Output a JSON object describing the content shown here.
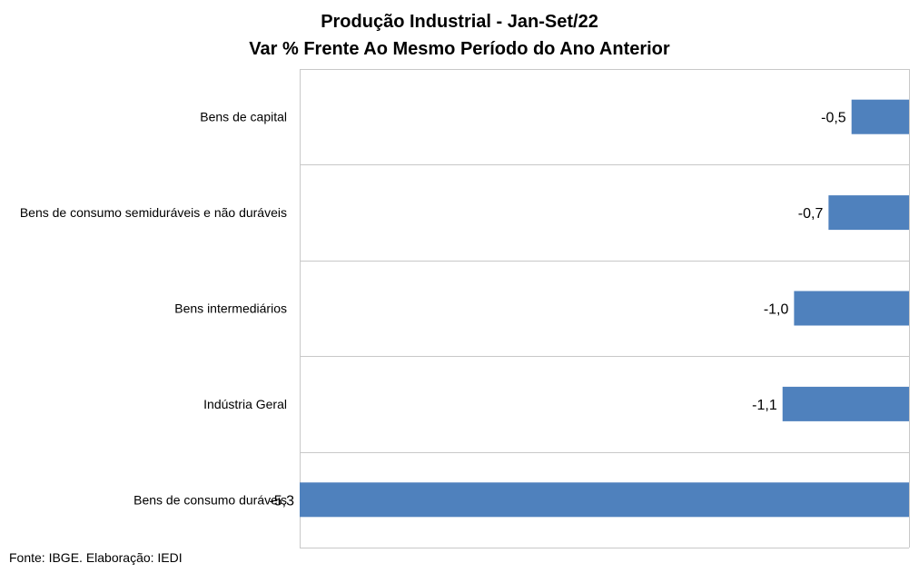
{
  "chart_data": {
    "type": "bar",
    "orientation": "horizontal",
    "title": "Produção Industrial - Jan-Set/22",
    "subtitle": "Var % Frente Ao Mesmo Período do Ano Anterior",
    "categories": [
      "Bens de capital",
      "Bens de consumo semiduráveis e não duráveis",
      "Bens intermediários",
      "Indústria Geral",
      "Bens de consumo duráveis"
    ],
    "values": [
      -0.5,
      -0.7,
      -1.0,
      -1.1,
      -5.3
    ],
    "value_labels": [
      "-0,5",
      "-0,7",
      "-1,0",
      "-1,1",
      "-5,3"
    ],
    "xlim": [
      -5.3,
      0
    ],
    "grid": true,
    "bar_color": "#4f81bd"
  },
  "source": "Fonte: IBGE. Elaboração: IEDI"
}
